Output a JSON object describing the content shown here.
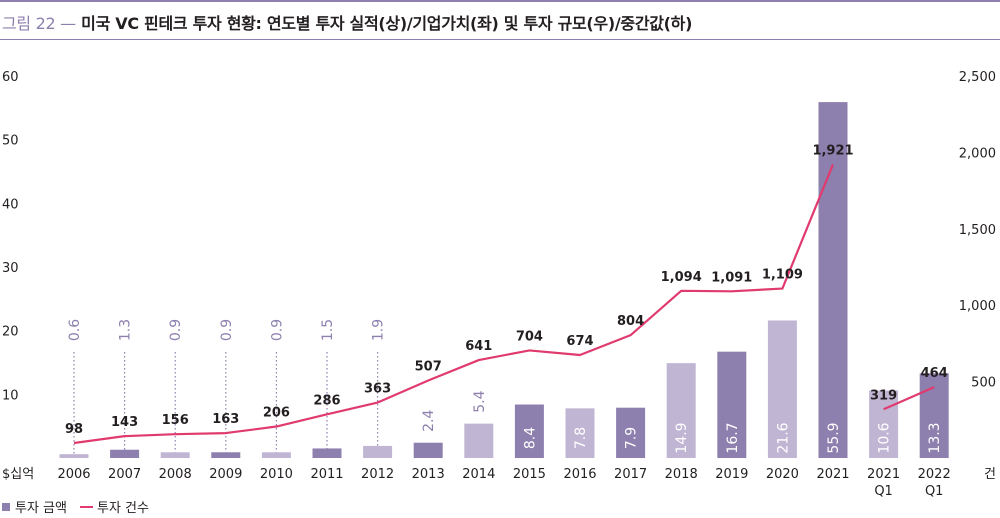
{
  "title": {
    "prefix": "그림 22 —",
    "text": "미국 VC 핀테크 투자 현황: 연도별 투자 실적(상)/기업가치(좌) 및 투자 규모(우)/중간값(하)"
  },
  "chart_data": {
    "type": "bar",
    "categories": [
      "2006",
      "2007",
      "2008",
      "2009",
      "2010",
      "2011",
      "2012",
      "2013",
      "2014",
      "2015",
      "2016",
      "2017",
      "2018",
      "2019",
      "2020",
      "2021",
      "2021\nQ1",
      "2022\nQ1"
    ],
    "series": [
      {
        "name": "투자 금액",
        "type": "bar",
        "axis": "left",
        "values": [
          0.6,
          1.3,
          0.9,
          0.9,
          0.9,
          1.5,
          1.9,
          2.4,
          5.4,
          8.4,
          7.8,
          7.9,
          14.9,
          16.7,
          21.6,
          55.9,
          10.6,
          13.3
        ],
        "labels": [
          "0.6",
          "1.3",
          "0.9",
          "0.9",
          "0.9",
          "1.5",
          "1.9",
          "2.4",
          "5.4",
          "8.4",
          "7.8",
          "7.9",
          "14.9",
          "16.7",
          "21.6",
          "55.9",
          "10.6",
          "13.3"
        ],
        "shades": [
          "light",
          "dark",
          "light",
          "dark",
          "light",
          "dark",
          "light",
          "dark",
          "light",
          "dark",
          "light",
          "dark",
          "light",
          "dark",
          "light",
          "dark",
          "light",
          "dark"
        ]
      },
      {
        "name": "투자 건수",
        "type": "line",
        "axis": "right",
        "values": [
          98,
          143,
          156,
          163,
          206,
          286,
          363,
          507,
          641,
          704,
          674,
          804,
          1094,
          1091,
          1109,
          1921,
          319,
          464
        ],
        "labels": [
          "98",
          "143",
          "156",
          "163",
          "206",
          "286",
          "363",
          "507",
          "641",
          "704",
          "674",
          "804",
          "1,094",
          "1,091",
          "1,109",
          "1,921",
          "319",
          "464"
        ],
        "segments": [
          [
            0,
            15
          ],
          [
            16,
            17
          ]
        ]
      }
    ],
    "y_left": {
      "unit": "$십억",
      "ticks": [
        "60",
        "50",
        "40",
        "30",
        "20",
        "10"
      ],
      "ylim": [
        0,
        60
      ]
    },
    "y_right": {
      "unit": "건",
      "ticks": [
        "2,500",
        "2,000",
        "1,500",
        "1,000",
        "500"
      ],
      "ylim": [
        0,
        2500
      ]
    },
    "legend": [
      {
        "label": "투자 금액",
        "kind": "square"
      },
      {
        "label": "투자 건수",
        "kind": "line"
      }
    ],
    "legend_position": "bottom-left",
    "grid": false,
    "colors": {
      "bar_dark": "#8d7fae",
      "bar_light": "#c0b6d4",
      "line": "#e03a6e",
      "bar_label_outside": "#8d7fae",
      "bar_label_inside": "#ffffff",
      "axis_text": "#231f20",
      "title_accent": "#8d7fae"
    }
  }
}
